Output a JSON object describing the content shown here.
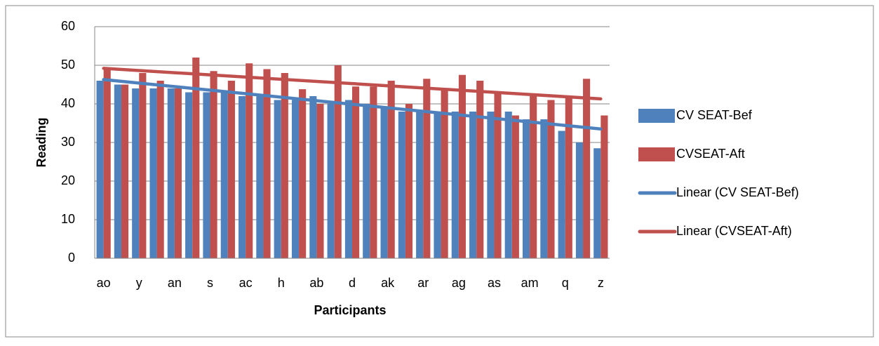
{
  "chart_data": {
    "type": "bar",
    "x_label": "Participants",
    "y_label": "Reading",
    "categories": [
      "ao",
      null,
      "y",
      null,
      "an",
      null,
      "s",
      null,
      "ac",
      null,
      "h",
      null,
      "ab",
      null,
      "d",
      null,
      "ak",
      null,
      "ar",
      null,
      "ag",
      null,
      "as",
      null,
      "am",
      null,
      "q",
      null,
      "z"
    ],
    "series": [
      {
        "name": "CV SEAT-Bef",
        "color": "#4f81bd",
        "values": [
          46,
          45,
          44,
          44,
          44,
          43,
          43,
          43,
          42,
          42,
          41,
          41,
          42,
          40,
          41,
          40,
          39,
          38,
          38,
          38,
          38,
          38,
          38,
          38,
          36,
          36,
          33,
          30,
          28.5
        ]
      },
      {
        "name": "CVSEAT-Aft",
        "color": "#c0504d",
        "values": [
          49,
          45,
          48,
          46,
          44,
          52,
          48.5,
          46,
          50.5,
          49,
          48,
          43.8,
          40,
          50,
          44.5,
          44.5,
          46,
          40,
          46.5,
          43.5,
          47.5,
          46,
          43,
          37,
          42,
          41,
          41.5,
          46.5,
          37
        ]
      }
    ],
    "trendlines": [
      {
        "name": "Linear (CV SEAT-Bef)",
        "color": "#4f81bd",
        "start": 46.3,
        "end": 33.5
      },
      {
        "name": "Linear (CVSEAT-Aft)",
        "color": "#c0504d",
        "start": 49.2,
        "end": 41.3
      }
    ],
    "ylim": [
      0,
      60
    ],
    "yticks": [
      0,
      10,
      20,
      30,
      40,
      50,
      60
    ],
    "grid": true
  }
}
